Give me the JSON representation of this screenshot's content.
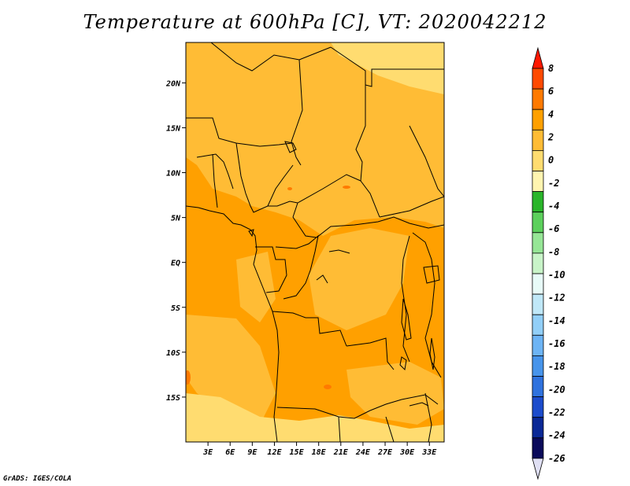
{
  "title": "Temperature at 600hPa [C], VT: 2020042212",
  "credit": "GrADS: IGES/COLA",
  "map": {
    "lon_range": [
      0,
      35
    ],
    "lat_range": [
      -20,
      24.5
    ],
    "lat_ticks": [
      {
        "value": 20,
        "label": "20N"
      },
      {
        "value": 15,
        "label": "15N"
      },
      {
        "value": 10,
        "label": "10N"
      },
      {
        "value": 5,
        "label": "5N"
      },
      {
        "value": 0,
        "label": "EQ"
      },
      {
        "value": -5,
        "label": "5S"
      },
      {
        "value": -10,
        "label": "10S"
      },
      {
        "value": -15,
        "label": "15S"
      }
    ],
    "lon_ticks": [
      {
        "value": 3,
        "label": "3E"
      },
      {
        "value": 6,
        "label": "6E"
      },
      {
        "value": 9,
        "label": "9E"
      },
      {
        "value": 12,
        "label": "12E"
      },
      {
        "value": 15,
        "label": "15E"
      },
      {
        "value": 18,
        "label": "18E"
      },
      {
        "value": 21,
        "label": "21E"
      },
      {
        "value": 24,
        "label": "24E"
      },
      {
        "value": 27,
        "label": "27E"
      },
      {
        "value": 30,
        "label": "30E"
      },
      {
        "value": 33,
        "label": "33E"
      }
    ]
  },
  "colorbar": {
    "levels": [
      "8",
      "6",
      "4",
      "2",
      "0",
      "-2",
      "-4",
      "-6",
      "-8",
      "-10",
      "-12",
      "-14",
      "-16",
      "-18",
      "-20",
      "-22",
      "-24",
      "-26"
    ],
    "colors": [
      "#ff1800",
      "#ff4a00",
      "#ff7a00",
      "#ffa000",
      "#ffbc35",
      "#ffdc70",
      "#fff5b0",
      "#2ab52a",
      "#5cd05c",
      "#96e696",
      "#c8f4c8",
      "#e8fbf8",
      "#c0e8f8",
      "#92cff8",
      "#6db4f5",
      "#4794eb",
      "#2f72de",
      "#1c4ccc",
      "#0a2896",
      "#0a0a5a",
      "#e0e0f4"
    ]
  }
}
